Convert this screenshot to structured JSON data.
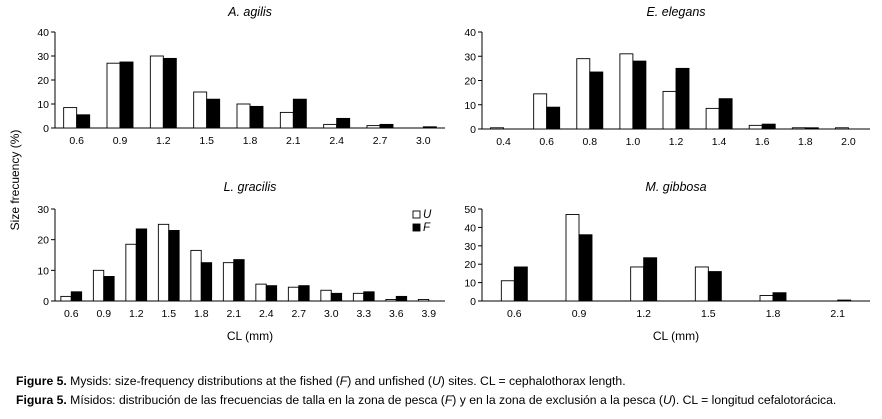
{
  "figure": {
    "ylabel": "Size frecuency (%)",
    "xlabel": "CL (mm)",
    "legend": [
      {
        "label": "U",
        "color": "#ffffff"
      },
      {
        "label": "F",
        "color": "#000000"
      }
    ]
  },
  "captions": {
    "en": {
      "lead": "Figure 5.",
      "p1": " Mysids: size-frequency distributions at the fished (",
      "f": "F",
      "p2": ") and unfished (",
      "u": "U",
      "p3": ") sites. CL = cephalothorax length."
    },
    "es": {
      "lead": "Figura 5.",
      "p1": " Mísidos: distribución de las frecuencias de talla en la zona de pesca (",
      "f": "F",
      "p2": ") y en la zona de exclusión a la pesca (",
      "u": "U",
      "p3": "). CL = longitud cefalotorácica."
    }
  },
  "chart_data": [
    {
      "type": "bar",
      "title": "A. agilis",
      "categories": [
        "0.6",
        "0.9",
        "1.2",
        "1.5",
        "1.8",
        "2.1",
        "2.4",
        "2.7",
        "3.0"
      ],
      "series": [
        {
          "name": "U",
          "color": "#ffffff",
          "values": [
            8.5,
            27,
            30,
            15,
            10,
            6.5,
            1.5,
            1,
            0
          ]
        },
        {
          "name": "F",
          "color": "#000000",
          "values": [
            5.5,
            27.5,
            29,
            12,
            9,
            12,
            4,
            1.5,
            0.5
          ]
        }
      ],
      "ylim": [
        0,
        40
      ],
      "yticks": [
        0,
        10,
        20,
        30,
        40
      ],
      "xlabel": "",
      "ylabel": ""
    },
    {
      "type": "bar",
      "title": "E. elegans",
      "categories": [
        "0.4",
        "0.6",
        "0.8",
        "1.0",
        "1.2",
        "1.4",
        "1.6",
        "1.8",
        "2.0"
      ],
      "series": [
        {
          "name": "U",
          "color": "#ffffff",
          "values": [
            0.5,
            14.5,
            29,
            31,
            15.5,
            8.5,
            1.5,
            0.5,
            0.5
          ]
        },
        {
          "name": "F",
          "color": "#000000",
          "values": [
            0,
            9,
            23.5,
            28,
            25,
            12.5,
            2,
            0.5,
            0
          ]
        }
      ],
      "ylim": [
        0,
        40
      ],
      "yticks": [
        0,
        10,
        20,
        30,
        40
      ],
      "xlabel": "",
      "ylabel": ""
    },
    {
      "type": "bar",
      "title": "L. gracilis",
      "categories": [
        "0.6",
        "0.9",
        "1.2",
        "1.5",
        "1.8",
        "2.1",
        "2.4",
        "2.7",
        "3.0",
        "3.3",
        "3.6",
        "3.9"
      ],
      "series": [
        {
          "name": "U",
          "color": "#ffffff",
          "values": [
            1.5,
            10,
            18.5,
            25,
            16.5,
            12.5,
            5.5,
            4.5,
            3.5,
            2.5,
            0.5,
            0.5
          ]
        },
        {
          "name": "F",
          "color": "#000000",
          "values": [
            3,
            8,
            23.5,
            23,
            12.5,
            13.5,
            5,
            5,
            2.5,
            3,
            1.5,
            0
          ]
        }
      ],
      "ylim": [
        0,
        30
      ],
      "yticks": [
        0,
        10,
        20,
        30
      ],
      "xlabel": "CL (mm)",
      "ylabel": "",
      "legend": "top-right"
    },
    {
      "type": "bar",
      "title": "M. gibbosa",
      "categories": [
        "0.6",
        "0.9",
        "1.2",
        "1.5",
        "1.8",
        "2.1"
      ],
      "series": [
        {
          "name": "U",
          "color": "#ffffff",
          "values": [
            11,
            47,
            18.5,
            18.5,
            3,
            0
          ]
        },
        {
          "name": "F",
          "color": "#000000",
          "values": [
            18.5,
            36,
            23.5,
            16,
            4.5,
            0.5
          ]
        }
      ],
      "ylim": [
        0,
        50
      ],
      "yticks": [
        0,
        10,
        20,
        30,
        40,
        50
      ],
      "xlabel": "CL (mm)",
      "ylabel": ""
    }
  ]
}
